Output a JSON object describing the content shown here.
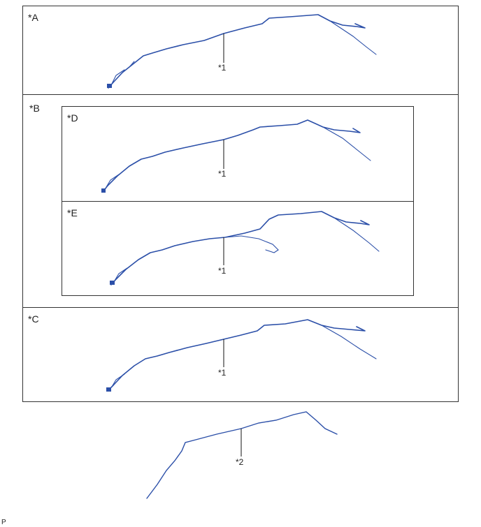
{
  "panels": {
    "a": {
      "label": "*A",
      "callout": "*1"
    },
    "b": {
      "label": "*B"
    },
    "d": {
      "label": "*D",
      "callout": "*1"
    },
    "e": {
      "label": "*E",
      "callout": "*1"
    },
    "c": {
      "label": "*C",
      "callout": "*1"
    }
  },
  "standalone": {
    "callout": "*2"
  },
  "footer": {
    "code": "P"
  },
  "colors": {
    "harness": "#2b4fa8",
    "frame": "#333333"
  }
}
